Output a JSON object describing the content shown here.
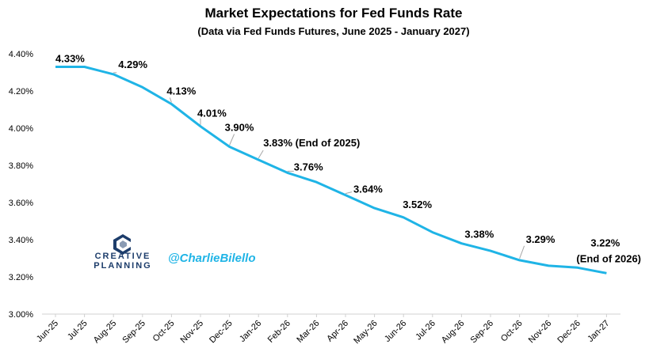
{
  "chart_data": {
    "type": "line",
    "title": "Market Expectations for Fed Funds Rate",
    "subtitle": "(Data via Fed Funds Futures, June 2025 - January 2027)",
    "categories": [
      "Jun-25",
      "Jul-25",
      "Aug-25",
      "Sep-25",
      "Oct-25",
      "Nov-25",
      "Dec-25",
      "Jan-26",
      "Feb-26",
      "Mar-26",
      "Apr-26",
      "May-26",
      "Jun-26",
      "Jul-26",
      "Aug-26",
      "Sep-26",
      "Oct-26",
      "Nov-26",
      "Dec-26",
      "Jan-27"
    ],
    "series": [
      {
        "values": [
          4.33,
          4.33,
          4.29,
          4.22,
          4.13,
          4.01,
          3.9,
          3.83,
          3.76,
          3.71,
          3.64,
          3.57,
          3.52,
          3.44,
          3.38,
          3.34,
          3.29,
          3.26,
          3.25,
          3.22
        ],
        "color": "#1fb4e6"
      }
    ],
    "ylim": [
      3.0,
      4.4
    ],
    "yticks": [
      "3.00%",
      "3.20%",
      "3.40%",
      "3.60%",
      "3.80%",
      "4.00%",
      "4.20%",
      "4.40%"
    ],
    "grid": false,
    "data_labels": [
      {
        "index": 0,
        "text": "4.33%"
      },
      {
        "index": 2,
        "text": "4.29%"
      },
      {
        "index": 4,
        "text": "4.13%"
      },
      {
        "index": 5,
        "text": "4.01%"
      },
      {
        "index": 6,
        "text": "3.90%"
      },
      {
        "index": 7,
        "text": "3.83% (End of 2025)"
      },
      {
        "index": 8,
        "text": "3.76%"
      },
      {
        "index": 10,
        "text": "3.64%"
      },
      {
        "index": 12,
        "text": "3.52%"
      },
      {
        "index": 14,
        "text": "3.38%"
      },
      {
        "index": 16,
        "text": "3.29%"
      },
      {
        "index": 19,
        "text": "3.22%",
        "text2": "(End of 2026)"
      }
    ]
  },
  "branding": {
    "company_line1": "CREATIVE",
    "company_line2": "PLANNING",
    "handle": "@CharlieBilello",
    "logo_color": "#1d3d6b"
  }
}
